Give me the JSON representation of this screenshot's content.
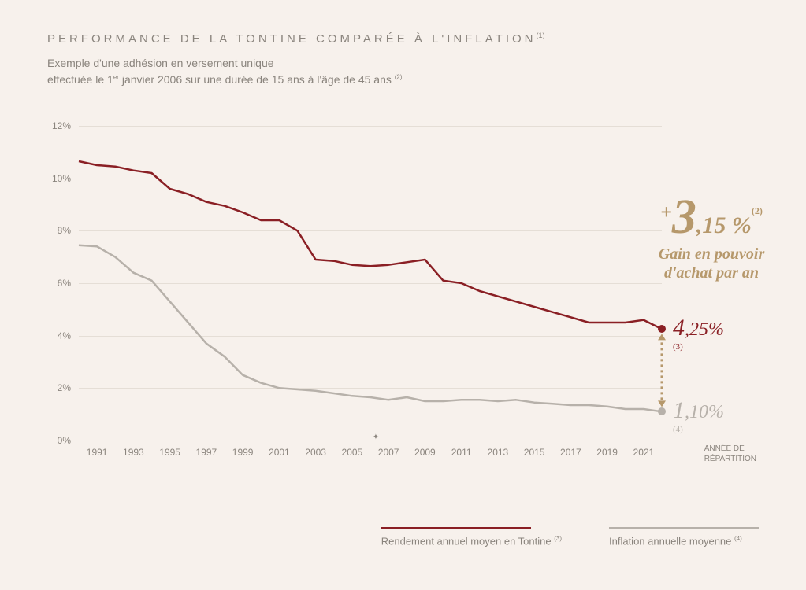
{
  "title": "PERFORMANCE DE LA TONTINE COMPARÉE À L'INFLATION",
  "title_foot": "(1)",
  "subtitle_l1_a": "Exemple d'une adhésion en versement unique",
  "subtitle_l2_a": "effectuée le 1",
  "subtitle_l2_sup": "er",
  "subtitle_l2_b": " janvier 2006 sur une durée de 15 ans à l'âge de 45 ans ",
  "subtitle_l2_foot": "(2)",
  "chart": {
    "type": "line",
    "background_color": "#f7f1ec",
    "grid_color": "#e5ded6",
    "ylim_min": 0,
    "ylim_max": 12,
    "ytick_step": 2,
    "yticks": [
      0,
      2,
      4,
      6,
      8,
      10,
      12
    ],
    "ytick_suffix": "%",
    "xlim_min": 1990,
    "xlim_max": 2022,
    "xticks": [
      1991,
      1993,
      1995,
      1997,
      1999,
      2001,
      2003,
      2005,
      2007,
      2009,
      2011,
      2013,
      2015,
      2017,
      2019,
      2021
    ],
    "xaxis_title_l1": "ANNÉE DE",
    "xaxis_title_l2": "RÉPARTITION",
    "label_fontsize": 12,
    "label_color": "#8a847d",
    "series": {
      "tontine": {
        "color": "#8a1f24",
        "line_width": 2.5,
        "x": [
          1990,
          1991,
          1992,
          1993,
          1994,
          1995,
          1996,
          1997,
          1998,
          1999,
          2000,
          2001,
          2002,
          2003,
          2004,
          2005,
          2006,
          2007,
          2008,
          2009,
          2010,
          2011,
          2012,
          2013,
          2014,
          2015,
          2016,
          2017,
          2018,
          2019,
          2020,
          2021,
          2022
        ],
        "y": [
          10.65,
          10.5,
          10.45,
          10.3,
          10.2,
          9.6,
          9.4,
          9.1,
          8.95,
          8.7,
          8.4,
          8.4,
          8.0,
          6.9,
          6.85,
          6.7,
          6.65,
          6.7,
          6.8,
          6.9,
          6.1,
          6.0,
          5.7,
          5.5,
          5.3,
          5.1,
          4.9,
          4.7,
          4.5,
          4.5,
          4.5,
          4.6,
          4.25
        ],
        "end_dot_radius": 5,
        "end_label_big": "4",
        "end_label_rest": ",25%",
        "end_label_foot": "(3)",
        "end_label_color": "#8a1f24"
      },
      "inflation": {
        "color": "#b7b1aa",
        "line_width": 2.5,
        "x": [
          1990,
          1991,
          1992,
          1993,
          1994,
          1995,
          1996,
          1997,
          1998,
          1999,
          2000,
          2001,
          2002,
          2003,
          2004,
          2005,
          2006,
          2007,
          2008,
          2009,
          2010,
          2011,
          2012,
          2013,
          2014,
          2015,
          2016,
          2017,
          2018,
          2019,
          2020,
          2021,
          2022
        ],
        "y": [
          7.45,
          7.4,
          7.0,
          6.4,
          6.1,
          5.3,
          4.5,
          3.7,
          3.2,
          2.5,
          2.2,
          2.0,
          1.95,
          1.9,
          1.8,
          1.7,
          1.65,
          1.55,
          1.65,
          1.5,
          1.5,
          1.55,
          1.55,
          1.5,
          1.55,
          1.45,
          1.4,
          1.35,
          1.35,
          1.3,
          1.2,
          1.2,
          1.1
        ],
        "end_dot_radius": 5,
        "end_label_big": "1",
        "end_label_rest": ",10%",
        "end_label_foot": "(4)",
        "end_label_color": "#b7b1aa"
      }
    },
    "gap_arrow_color": "#b6986b"
  },
  "callout": {
    "plus": "+",
    "main": "3",
    "rest": ",15 %",
    "foot": "(2)",
    "sub_l1": "Gain en pouvoir",
    "sub_l2": "d'achat par an",
    "color": "#b6986b"
  },
  "legend": {
    "tontine": {
      "label": "Rendement annuel moyen en Tontine ",
      "foot": "(3)",
      "color": "#8a1f24"
    },
    "inflation": {
      "label": "Inflation annuelle moyenne ",
      "foot": "(4)",
      "color": "#b7b1aa"
    }
  }
}
